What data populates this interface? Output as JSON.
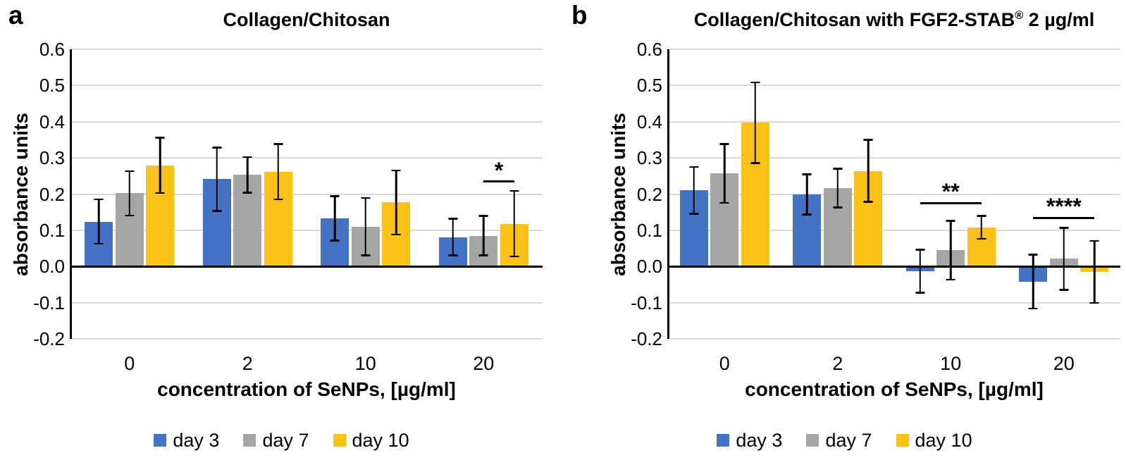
{
  "chart_data": [
    {
      "type": "bar",
      "panel_label": "a",
      "title_pre": "Collagen/Chitosan",
      "title_sup": "",
      "title_post": "",
      "xlabel": "concentration of SeNPs, [µg/ml]",
      "ylabel": "absorbance units",
      "ylim": [
        -0.2,
        0.6
      ],
      "ytick_step": 0.1,
      "ytick_labels": [
        "0.6",
        "0.5",
        "0.4",
        "0.3",
        "0.2",
        "0.1",
        "0.0",
        "-0.1",
        "-0.2"
      ],
      "categories": [
        "0",
        "2",
        "10",
        "20"
      ],
      "grid": true,
      "legend_position": "bottom",
      "series": [
        {
          "name": "day 3",
          "color": "#4472C4",
          "values": [
            0.124,
            0.241,
            0.133,
            0.081
          ],
          "errors": [
            0.062,
            0.088,
            0.062,
            0.051
          ]
        },
        {
          "name": "day 7",
          "color": "#A5A5A5",
          "values": [
            0.202,
            0.253,
            0.11,
            0.085
          ],
          "errors": [
            0.062,
            0.05,
            0.08,
            0.055
          ]
        },
        {
          "name": "day 10",
          "color": "#FCC115",
          "values": [
            0.279,
            0.262,
            0.177,
            0.118
          ],
          "errors": [
            0.077,
            0.077,
            0.089,
            0.091
          ]
        }
      ],
      "significance": [
        {
          "label": "*",
          "category": 3,
          "from_series": 1,
          "to_series": 2,
          "line_y": 0.235
        }
      ]
    },
    {
      "type": "bar",
      "panel_label": "b",
      "title_pre": "Collagen/Chitosan with FGF2-STAB",
      "title_sup": "®",
      "title_post": " 2 µg/ml",
      "xlabel": "concentration of SeNPs, [µg/ml]",
      "ylabel": "absorbance units",
      "ylim": [
        -0.2,
        0.6
      ],
      "ytick_step": 0.1,
      "ytick_labels": [
        "0.6",
        "0.5",
        "0.4",
        "0.3",
        "0.2",
        "0.1",
        "0.0",
        "-0.1",
        "-0.2"
      ],
      "categories": [
        "0",
        "2",
        "10",
        "20"
      ],
      "grid": true,
      "legend_position": "bottom",
      "series": [
        {
          "name": "day 3",
          "color": "#4472C4",
          "values": [
            0.21,
            0.199,
            -0.013,
            -0.042
          ],
          "errors": [
            0.065,
            0.056,
            0.06,
            0.075
          ]
        },
        {
          "name": "day 7",
          "color": "#A5A5A5",
          "values": [
            0.257,
            0.217,
            0.045,
            0.021
          ],
          "errors": [
            0.082,
            0.054,
            0.082,
            0.086
          ]
        },
        {
          "name": "day 10",
          "color": "#FCC115",
          "values": [
            0.397,
            0.264,
            0.108,
            -0.015
          ],
          "errors": [
            0.112,
            0.086,
            0.032,
            0.086
          ]
        }
      ],
      "significance": [
        {
          "label": "**",
          "category": 2,
          "from_series": 0,
          "to_series": 2,
          "line_y": 0.175
        },
        {
          "label": "****",
          "category": 3,
          "from_series": 0,
          "to_series": 2,
          "line_y": 0.134
        }
      ]
    }
  ],
  "style_colors": {
    "gridline": "#D9D9D9",
    "axis": "#000000",
    "background": "#FFFFFF"
  }
}
